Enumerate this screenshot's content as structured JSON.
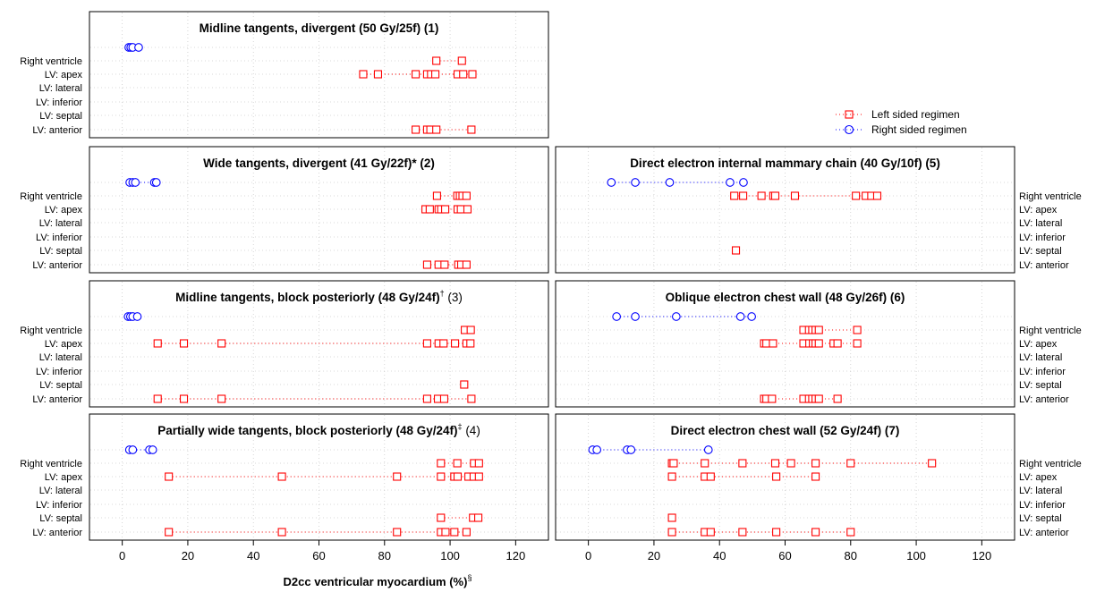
{
  "figure": {
    "xlabel": "D2cc ventricular myocardium (%)",
    "xlabel_sup": "§",
    "legend": {
      "left_label": "Left sided regimen",
      "right_label": "Right sided regimen",
      "left_color": "#ff0000",
      "right_color": "#0000ff",
      "left_marker": "square",
      "right_marker": "circle"
    }
  },
  "chart_data": [
    {
      "type": "dot-strip",
      "title": "Midline tangents, divergent (50 Gy/25f)",
      "title_sup": "",
      "title_num": "(1)",
      "title_num_bold": true,
      "ylabels_side": "left",
      "xlim": [
        -10,
        130
      ],
      "xticks": [
        0,
        20,
        40,
        60,
        80,
        100,
        120
      ],
      "categories": [
        "Right ventricle",
        "LV: apex",
        "LV: lateral",
        "LV: inferior",
        "LV: septal",
        "LV: anterior"
      ],
      "series": [
        {
          "name": "Right sided regimen",
          "values": [
            [
              2,
              2.6,
              3.2,
              5
            ],
            [],
            [],
            [],
            [],
            []
          ]
        },
        {
          "name": "Left sided regimen",
          "values": [
            [
              95.8,
              103.6
            ],
            [
              73.5,
              78,
              89.5,
              93,
              94.2,
              95.5,
              102.3,
              104,
              106.8
            ],
            [],
            [],
            [],
            [
              89.5,
              93,
              94,
              95.8,
              106.5
            ]
          ]
        }
      ]
    },
    {
      "type": "dot-strip",
      "title": "Wide tangents, divergent (41 Gy/22f)*",
      "title_sup": "",
      "title_num": "(2)",
      "title_num_bold": true,
      "ylabels_side": "left",
      "xlim": [
        -10,
        130
      ],
      "xticks": [
        0,
        20,
        40,
        60,
        80,
        100,
        120
      ],
      "categories": [
        "Right ventricle",
        "LV: apex",
        "LV: lateral",
        "LV: inferior",
        "LV: septal",
        "LV: anterior"
      ],
      "series": [
        {
          "name": "Right sided regimen",
          "values": [
            [
              2.3,
              3.2,
              4,
              9.8,
              10.4
            ],
            [],
            [],
            [],
            [],
            []
          ]
        },
        {
          "name": "Left sided regimen",
          "values": [
            [
              96,
              102.2,
              103,
              103.8,
              105
            ],
            [
              92.5,
              93.8,
              96.5,
              97.3,
              98.5,
              102.3,
              103.3,
              105.3
            ],
            [],
            [],
            [],
            [
              93,
              96.5,
              98.3,
              102.5,
              103.4,
              105
            ]
          ]
        }
      ]
    },
    {
      "type": "dot-strip",
      "title": "Midline tangents, block posteriorly (48 Gy/24f)",
      "title_sup": "†",
      "title_num": "(3)",
      "title_num_bold": false,
      "ylabels_side": "left",
      "xlim": [
        -10,
        130
      ],
      "xticks": [
        0,
        20,
        40,
        60,
        80,
        100,
        120
      ],
      "categories": [
        "Right ventricle",
        "LV: apex",
        "LV: lateral",
        "LV: inferior",
        "LV: septal",
        "LV: anterior"
      ],
      "series": [
        {
          "name": "Right sided regimen",
          "values": [
            [
              1.8,
              2.5,
              3.2,
              4.6
            ],
            [],
            [],
            [],
            [],
            []
          ]
        },
        {
          "name": "Left sided regimen",
          "values": [
            [
              104.5,
              106.3
            ],
            [
              10.8,
              18.8,
              30.3,
              93,
              96.5,
              98,
              101.5,
              105,
              106.2
            ],
            [],
            [],
            [
              104.3
            ],
            [
              10.8,
              18.8,
              30.3,
              93,
              96.3,
              98.2,
              106.5
            ]
          ]
        }
      ]
    },
    {
      "type": "dot-strip",
      "title": "Partially wide tangents, block posteriorly (48 Gy/24f)",
      "title_sup": "‡",
      "title_num": "(4)",
      "title_num_bold": false,
      "ylabels_side": "left",
      "xlim": [
        -10,
        130
      ],
      "xticks": [
        0,
        20,
        40,
        60,
        80,
        100,
        120
      ],
      "categories": [
        "Right ventricle",
        "LV: apex",
        "LV: lateral",
        "LV: inferior",
        "LV: septal",
        "LV: anterior"
      ],
      "series": [
        {
          "name": "Right sided regimen",
          "values": [
            [
              2.2,
              3.2,
              8.3,
              9.3
            ],
            [],
            [],
            [],
            [],
            []
          ]
        },
        {
          "name": "Left sided regimen",
          "values": [
            [
              97.2,
              102.2,
              107.3,
              108.8
            ],
            [
              14.2,
              48.7,
              83.8,
              97.2,
              101.3,
              102.3,
              105.6,
              107.2,
              108.8
            ],
            [],
            [],
            [
              97.2,
              107,
              108.6
            ],
            [
              14.2,
              48.7,
              83.8,
              97.2,
              98.6,
              101.3,
              105
            ]
          ]
        }
      ]
    },
    {
      "type": "dot-strip",
      "title": "Direct electron internal mammary chain (40 Gy/10f)",
      "title_sup": "",
      "title_num": "(5)",
      "title_num_bold": true,
      "ylabels_side": "right",
      "xlim": [
        -10,
        130
      ],
      "xticks": [
        0,
        20,
        40,
        60,
        80,
        100,
        120
      ],
      "categories": [
        "Right ventricle",
        "LV: apex",
        "LV: lateral",
        "LV: inferior",
        "LV: septal",
        "LV: anterior"
      ],
      "series": [
        {
          "name": "Right sided regimen",
          "values": [
            [
              7,
              14.3,
              24.8,
              43.2,
              47.3
            ],
            [],
            [],
            [],
            [],
            []
          ]
        },
        {
          "name": "Left sided regimen",
          "values": [
            [
              44.5,
              47.2,
              52.8,
              56.4,
              57,
              63,
              81.6,
              84.6,
              86.3,
              88.1
            ],
            [],
            [],
            [],
            [
              45
            ],
            []
          ]
        }
      ]
    },
    {
      "type": "dot-strip",
      "title": "Oblique electron chest wall (48 Gy/26f)",
      "title_sup": "",
      "title_num": "(6)",
      "title_num_bold": true,
      "ylabels_side": "right",
      "xlim": [
        -10,
        130
      ],
      "xticks": [
        0,
        20,
        40,
        60,
        80,
        100,
        120
      ],
      "categories": [
        "Right ventricle",
        "LV: apex",
        "LV: lateral",
        "LV: inferior",
        "LV: septal",
        "LV: anterior"
      ],
      "series": [
        {
          "name": "Right sided regimen",
          "values": [
            [
              8.6,
              14.3,
              26.8,
              46.4,
              49.8
            ],
            [],
            [],
            [],
            [],
            []
          ]
        },
        {
          "name": "Left sided regimen",
          "values": [
            [
              65.6,
              67.3,
              68.3,
              69.3,
              70.3,
              82
            ],
            [
              53.6,
              54.3,
              56.3,
              65.6,
              67.4,
              68.5,
              69.3,
              70.3,
              74.8,
              76,
              82
            ],
            [],
            [],
            [],
            [
              53.6,
              54.3,
              56,
              65.6,
              67.3,
              68.3,
              69.3,
              70.3,
              76
            ]
          ]
        }
      ]
    },
    {
      "type": "dot-strip",
      "title": "Direct electron chest wall (52 Gy/24f)",
      "title_sup": "",
      "title_num": "(7)",
      "title_num_bold": true,
      "ylabels_side": "right",
      "xlim": [
        -10,
        130
      ],
      "xticks": [
        0,
        20,
        40,
        60,
        80,
        100,
        120
      ],
      "categories": [
        "Right ventricle",
        "LV: apex",
        "LV: lateral",
        "LV: inferior",
        "LV: septal",
        "LV: anterior"
      ],
      "series": [
        {
          "name": "Right sided regimen",
          "values": [
            [
              1.3,
              2.6,
              11.8,
              13,
              36.6
            ],
            [],
            [],
            [],
            [],
            []
          ]
        },
        {
          "name": "Left sided regimen",
          "values": [
            [
              25.5,
              26,
              35.5,
              47,
              57,
              61.8,
              69.3,
              80,
              104.8
            ],
            [
              25.5,
              35.5,
              37.3,
              57.3,
              69.3
            ],
            [],
            [],
            [
              25.5
            ],
            [
              25.5,
              35.5,
              37.3,
              47,
              57.3,
              69.3,
              80
            ]
          ]
        }
      ]
    }
  ]
}
